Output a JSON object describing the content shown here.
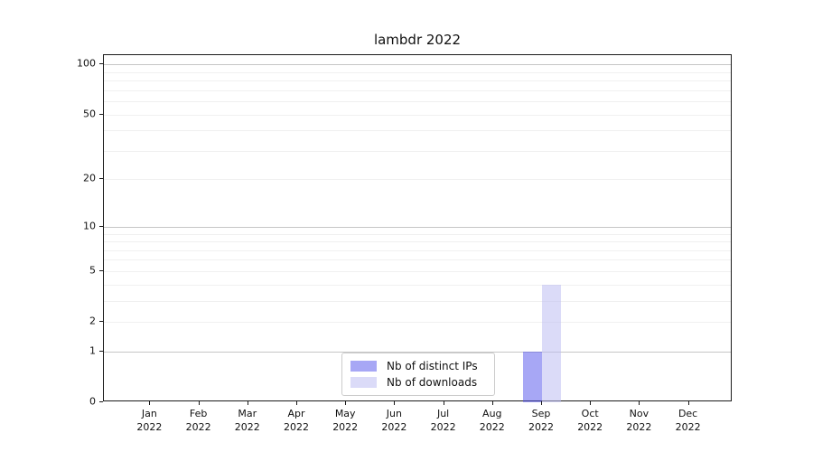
{
  "chart_data": {
    "type": "bar",
    "title": "lambdr 2022",
    "categories": [
      "Jan 2022",
      "Feb 2022",
      "Mar 2022",
      "Apr 2022",
      "May 2022",
      "Jun 2022",
      "Jul 2022",
      "Aug 2022",
      "Sep 2022",
      "Oct 2022",
      "Nov 2022",
      "Dec 2022"
    ],
    "series": [
      {
        "name": "Nb of distinct IPs",
        "color": "rgba(80,80,235,0.5)",
        "values": [
          0,
          0,
          0,
          0,
          0,
          0,
          0,
          0,
          1,
          0,
          0,
          0
        ]
      },
      {
        "name": "Nb of downloads",
        "color": "rgba(190,190,243,0.55)",
        "values": [
          0,
          0,
          0,
          0,
          0,
          0,
          0,
          0,
          4,
          0,
          0,
          0
        ]
      }
    ],
    "xlabel": "",
    "ylabel": "",
    "yscale": "log1p",
    "ylim": [
      0,
      113.5
    ],
    "yticks": [
      0,
      1,
      2,
      5,
      10,
      20,
      50,
      100
    ],
    "grid": {
      "on": true,
      "major_values": [
        1,
        10,
        100
      ],
      "minor_values": [
        2,
        3,
        4,
        5,
        6,
        7,
        8,
        9,
        20,
        30,
        40,
        50,
        60,
        70,
        80,
        90
      ]
    },
    "legend_position": "lower center"
  },
  "colors": {
    "major_grid": "#c6c6c6",
    "minor_grid": "#f0f0f0",
    "spine": "#1a1a1a",
    "text": "#111111"
  }
}
